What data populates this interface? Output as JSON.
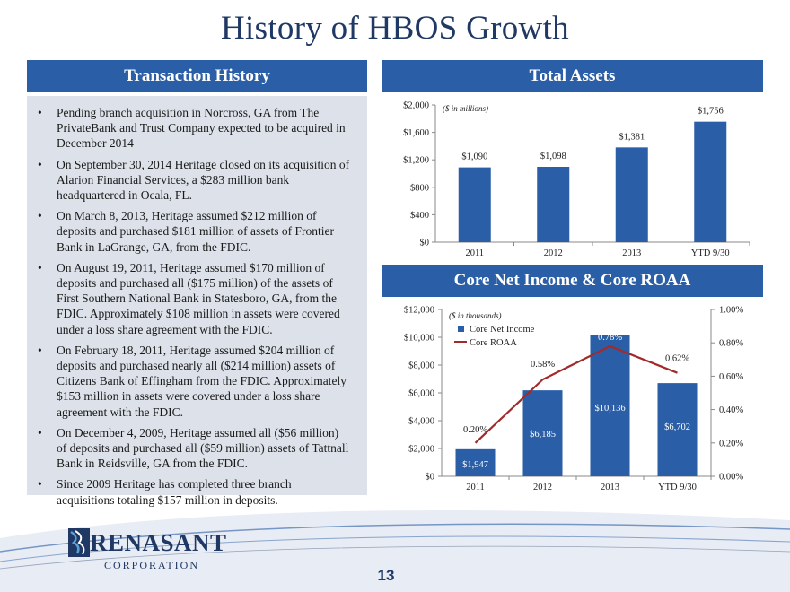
{
  "title": "History of HBOS Growth",
  "page_number": "13",
  "logo": {
    "name": "RENASANT",
    "sub": "CORPORATION"
  },
  "transactions": {
    "header": "Transaction History",
    "items": [
      "Pending branch acquisition in Norcross, GA from The PrivateBank and Trust Company expected to be acquired in December 2014",
      "On September 30, 2014 Heritage closed on its acquisition of Alarion Financial Services, a $283 million bank headquartered in Ocala, FL.",
      "On March 8, 2013, Heritage assumed $212 million of deposits and purchased $181 million of assets of Frontier Bank in LaGrange, GA, from the FDIC.",
      "On August 19, 2011, Heritage assumed $170 million of deposits and purchased all ($175 million) of the assets of First Southern National Bank in Statesboro, GA, from the FDIC. Approximately $108 million in assets were covered under a loss share agreement with the FDIC.",
      "On February 18, 2011, Heritage assumed $204 million of deposits and purchased nearly all ($214 million) assets of Citizens Bank of Effingham from the FDIC. Approximately $153 million in assets were covered under a loss share agreement with the FDIC.",
      "On December 4, 2009, Heritage assumed all ($56 million) of deposits and purchased all ($59 million) assets of Tattnall Bank in Reidsville, GA from the FDIC.",
      "Since 2009 Heritage has completed three branch acquisitions totaling $157 million in deposits."
    ],
    "bullet": "•"
  },
  "colors": {
    "bar": "#2a5ea6",
    "line": "#a32a2a",
    "title": "#1f3864",
    "header": "#2a5ea6"
  },
  "chart_data": [
    {
      "type": "bar",
      "header": "Total Assets",
      "title": "Total Assets",
      "note": "($ in millions)",
      "categories": [
        "2011",
        "2012",
        "2013",
        "YTD 9/30"
      ],
      "values": [
        1090,
        1098,
        1381,
        1756
      ],
      "value_labels": [
        "$1,090",
        "$1,098",
        "$1,381",
        "$1,756"
      ],
      "ylim": [
        0,
        2000
      ],
      "yticks": [
        0,
        400,
        800,
        1200,
        1600,
        2000
      ],
      "ytick_labels": [
        "$0",
        "$400",
        "$800",
        "$1,200",
        "$1,600",
        "$2,000"
      ]
    },
    {
      "type": "bar+line",
      "header": "Core Net Income & Core ROAA",
      "title": "Core Net Income & Core ROAA",
      "note": "($ in thousands)",
      "categories": [
        "2011",
        "2012",
        "2013",
        "YTD 9/30"
      ],
      "series": [
        {
          "name": "Core Net Income",
          "type": "bar",
          "axis": "left",
          "values": [
            1947,
            6185,
            10136,
            6702
          ],
          "labels": [
            "$1,947",
            "$6,185",
            "$10,136",
            "$6,702"
          ]
        },
        {
          "name": "Core ROAA",
          "type": "line",
          "axis": "right",
          "values": [
            0.2,
            0.58,
            0.78,
            0.62
          ],
          "labels": [
            "0.20%",
            "0.58%",
            "0.78%",
            "0.62%"
          ]
        }
      ],
      "ylim_left": [
        0,
        12000
      ],
      "yticks_left": [
        0,
        2000,
        4000,
        6000,
        8000,
        10000,
        12000
      ],
      "ytick_labels_left": [
        "$0",
        "$2,000",
        "$4,000",
        "$6,000",
        "$8,000",
        "$10,000",
        "$12,000"
      ],
      "ylim_right": [
        0,
        1.0
      ],
      "yticks_right": [
        0,
        0.2,
        0.4,
        0.6,
        0.8,
        1.0
      ],
      "ytick_labels_right": [
        "0.00%",
        "0.20%",
        "0.40%",
        "0.60%",
        "0.80%",
        "1.00%"
      ]
    }
  ]
}
